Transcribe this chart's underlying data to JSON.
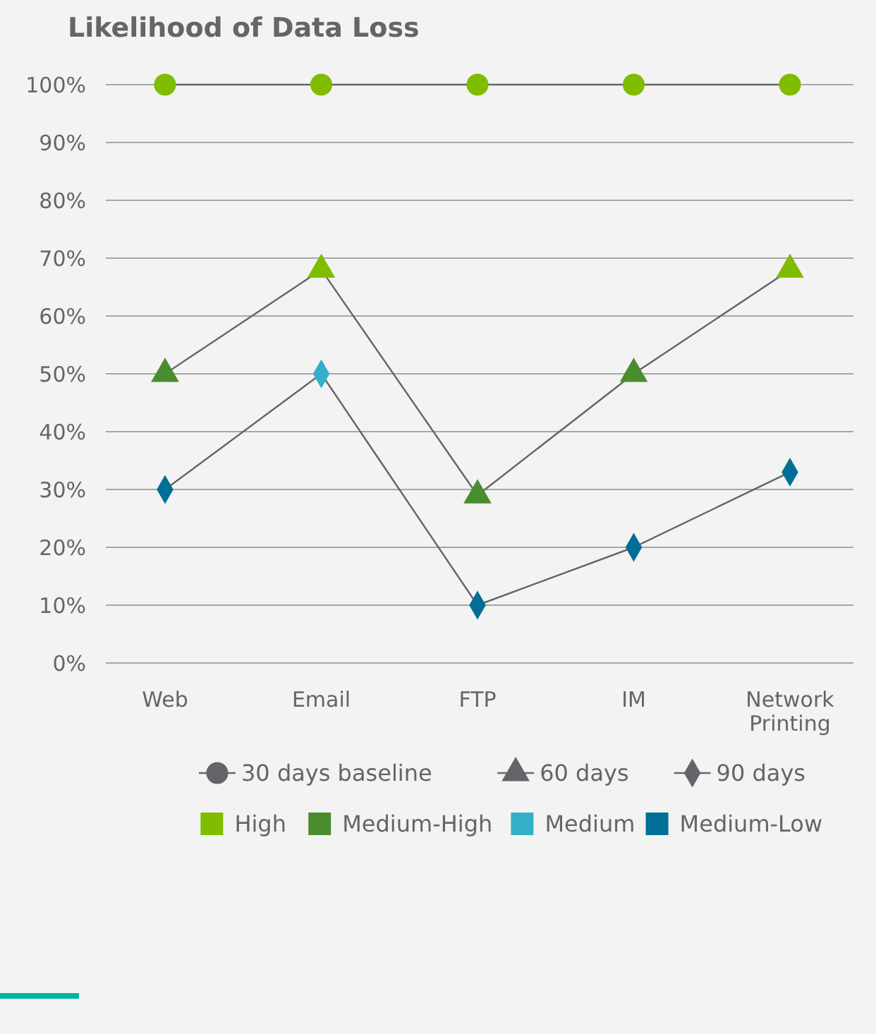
{
  "chart_data": {
    "type": "line",
    "title": "Likelihood of Data Loss",
    "categories": [
      "Web",
      "Email",
      "FTP",
      "IM",
      "Network Printing"
    ],
    "ylim": [
      0,
      100
    ],
    "yticks": [
      {
        "value": 0,
        "label": "0%"
      },
      {
        "value": 10,
        "label": "10%"
      },
      {
        "value": 20,
        "label": "20%"
      },
      {
        "value": 30,
        "label": "30%"
      },
      {
        "value": 40,
        "label": "40%"
      },
      {
        "value": 50,
        "label": "50%"
      },
      {
        "value": 60,
        "label": "60%"
      },
      {
        "value": 70,
        "label": "70%"
      },
      {
        "value": 80,
        "label": "80%"
      },
      {
        "value": 90,
        "label": "90%"
      },
      {
        "value": 100,
        "label": "100%"
      }
    ],
    "grid": "y",
    "legend": "bottom",
    "series": [
      {
        "name": "30 days baseline",
        "color": "#646569",
        "marker": "circle",
        "values": [
          100,
          100,
          100,
          100,
          100
        ],
        "colors": [
          "#80bc00",
          "#80bc00",
          "#80bc00",
          "#80bc00",
          "#80bc00"
        ]
      },
      {
        "name": "60 days",
        "color": "#646569",
        "marker": "triangle",
        "values": [
          50,
          68,
          29,
          50,
          68
        ],
        "colors": [
          "#4a8c2e",
          "#80bc00",
          "#4a8c2e",
          "#4a8c2e",
          "#80bc00"
        ]
      },
      {
        "name": "90 days",
        "color": "#646569",
        "marker": "diamond",
        "values": [
          30,
          50,
          10,
          20,
          33
        ],
        "colors": [
          "#006e96",
          "#33b0c8",
          "#006e96",
          "#006e96",
          "#006e96"
        ]
      },
      {
        "name": "High",
        "type": "scatter",
        "color": "#80bc00",
        "marker": "square",
        "values": [
          null,
          null,
          null,
          null,
          null
        ]
      },
      {
        "name": "Medium-High",
        "type": "scatter",
        "color": "#4a8c2e",
        "marker": "square",
        "values": [
          null,
          null,
          null,
          null,
          null
        ]
      },
      {
        "name": "Medium",
        "type": "scatter",
        "color": "#33b0c8",
        "marker": "square",
        "values": [
          null,
          null,
          null,
          null,
          null
        ]
      },
      {
        "name": "Medium-Low",
        "type": "scatter",
        "color": "#006e96",
        "marker": "square",
        "values": [
          null,
          null,
          null,
          null,
          null
        ]
      }
    ]
  }
}
